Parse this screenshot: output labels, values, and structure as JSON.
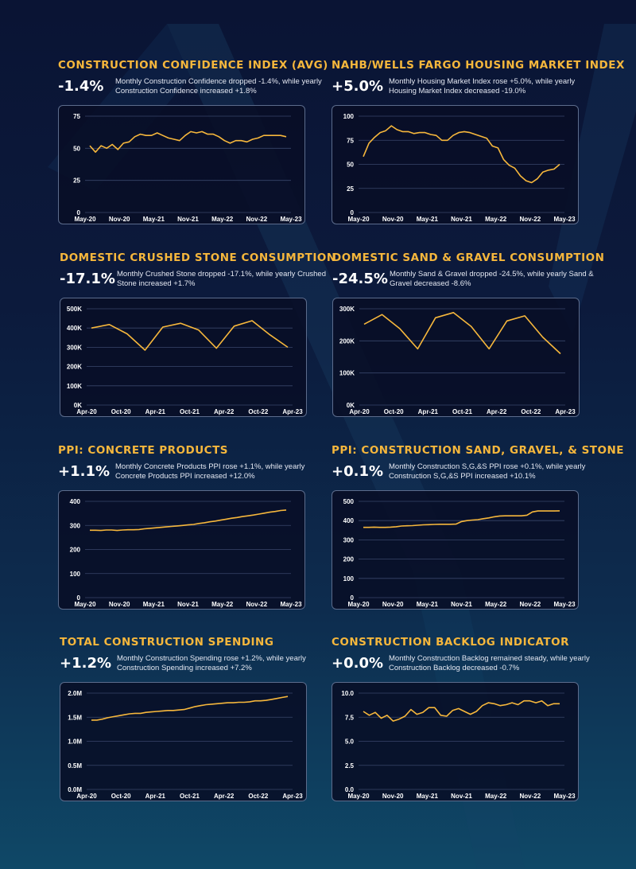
{
  "colors": {
    "accent": "#f6b73c",
    "line": "#f6b73c",
    "grid": "#39466a"
  },
  "charts": [
    {
      "id": "confidence",
      "title": "CONSTRUCTION CONFIDENCE INDEX (AVG)",
      "metric": "-1.4%",
      "description": "Monthly Construction Confidence dropped -1.4%, while yearly Construction Confidence increased +1.8%",
      "chart_data": {
        "type": "line",
        "ylim": [
          0,
          75
        ],
        "yticks": [
          "0",
          "25",
          "50",
          "75"
        ],
        "xticks": [
          "May-20",
          "Nov-20",
          "May-21",
          "Nov-21",
          "May-22",
          "Nov-22",
          "May-23"
        ],
        "values": [
          52,
          47,
          52,
          50,
          53,
          49,
          54,
          55,
          59,
          61,
          60,
          60,
          62,
          60,
          58,
          57,
          56,
          60,
          63,
          62,
          63,
          61,
          61,
          59,
          56,
          54,
          56,
          56,
          55,
          57,
          58,
          60,
          60,
          60,
          60,
          59
        ]
      }
    },
    {
      "id": "housing",
      "title": "NAHB/WELLS FARGO HOUSING MARKET INDEX",
      "metric": "+5.0%",
      "description": "Monthly Housing Market Index rose +5.0%, while yearly Housing Market Index decreased -19.0%",
      "chart_data": {
        "type": "line",
        "ylim": [
          0,
          100
        ],
        "yticks": [
          "0",
          "25",
          "50",
          "75",
          "100"
        ],
        "xticks": [
          "May-20",
          "Nov-20",
          "May-21",
          "Nov-21",
          "May-22",
          "Nov-22",
          "May-23"
        ],
        "values": [
          58,
          72,
          78,
          83,
          85,
          90,
          86,
          84,
          84,
          82,
          83,
          83,
          81,
          80,
          75,
          75,
          80,
          83,
          84,
          83,
          81,
          79,
          77,
          69,
          67,
          55,
          49,
          46,
          38,
          33,
          31,
          35,
          42,
          44,
          45,
          50
        ]
      }
    },
    {
      "id": "crushed",
      "title": "DOMESTIC CRUSHED STONE CONSUMPTION",
      "metric": "-17.1%",
      "description": "Monthly Crushed Stone dropped -17.1%, while yearly Crushed Stone increased +1.7%",
      "chart_data": {
        "type": "line",
        "ylim": [
          0,
          500
        ],
        "yticks": [
          "0K",
          "100K",
          "200K",
          "300K",
          "400K",
          "500K"
        ],
        "xticks": [
          "Apr-20",
          "Oct-20",
          "Apr-21",
          "Oct-21",
          "Apr-22",
          "Oct-22",
          "Apr-23"
        ],
        "values": [
          400,
          418,
          370,
          285,
          405,
          425,
          390,
          295,
          410,
          438,
          365,
          300
        ]
      }
    },
    {
      "id": "sand",
      "title": "DOMESTIC SAND & GRAVEL CONSUMPTION",
      "metric": "-24.5%",
      "description": "Monthly Sand & Gravel dropped -24.5%, while yearly Sand & Gravel decreased -8.6%",
      "chart_data": {
        "type": "line",
        "ylim": [
          0,
          300
        ],
        "yticks": [
          "0K",
          "100K",
          "200K",
          "300K"
        ],
        "xticks": [
          "Apr-20",
          "Oct-20",
          "Apr-21",
          "Oct-21",
          "Apr-22",
          "Oct-22",
          "Apr-23"
        ],
        "values": [
          252,
          282,
          238,
          175,
          272,
          288,
          245,
          175,
          262,
          278,
          212,
          160
        ]
      }
    },
    {
      "id": "concrete",
      "title": "PPI: CONCRETE PRODUCTS",
      "metric": "+1.1%",
      "description": "Monthly Concrete Products PPI rose +1.1%, while yearly Concrete Products PPI increased +12.0%",
      "chart_data": {
        "type": "line",
        "ylim": [
          0,
          400
        ],
        "yticks": [
          "0",
          "100",
          "200",
          "300",
          "400"
        ],
        "xticks": [
          "May-20",
          "Nov-20",
          "May-21",
          "Nov-21",
          "May-22",
          "Nov-22",
          "May-23"
        ],
        "values": [
          280,
          280,
          279,
          281,
          281,
          279,
          281,
          282,
          282,
          283,
          286,
          288,
          290,
          292,
          294,
          296,
          298,
          300,
          302,
          304,
          308,
          311,
          315,
          318,
          322,
          326,
          330,
          333,
          337,
          340,
          343,
          347,
          351,
          355,
          358,
          362,
          364
        ]
      }
    },
    {
      "id": "sgs",
      "title": "PPI: CONSTRUCTION SAND, GRAVEL, & STONE",
      "metric": "+0.1%",
      "description": "Monthly Construction S,G,&S PPI rose +0.1%, while yearly Construction S,G,&S PPI increased +10.1%",
      "chart_data": {
        "type": "line",
        "ylim": [
          0,
          500
        ],
        "yticks": [
          "0",
          "100",
          "200",
          "300",
          "400",
          "500"
        ],
        "xticks": [
          "May-20",
          "Nov-20",
          "May-21",
          "Nov-21",
          "May-22",
          "Nov-22",
          "May-23"
        ],
        "values": [
          365,
          365,
          366,
          365,
          365,
          366,
          368,
          372,
          373,
          374,
          376,
          378,
          379,
          380,
          381,
          381,
          381,
          382,
          395,
          400,
          403,
          405,
          410,
          414,
          420,
          424,
          425,
          425,
          425,
          425,
          428,
          445,
          450,
          450,
          450,
          450,
          451
        ]
      }
    },
    {
      "id": "spending",
      "title": "TOTAL CONSTRUCTION SPENDING",
      "metric": "+1.2%",
      "description": "Monthly Construction Spending rose +1.2%, while yearly Construction Spending increased +7.2%",
      "chart_data": {
        "type": "line",
        "ylim": [
          0,
          2.0
        ],
        "yticks": [
          "0.0M",
          "0.5M",
          "1.0M",
          "1.5M",
          "2.0M"
        ],
        "xticks": [
          "Apr-20",
          "Oct-20",
          "Apr-21",
          "Oct-21",
          "Apr-22",
          "Oct-22",
          "Apr-23"
        ],
        "values": [
          1.44,
          1.44,
          1.46,
          1.49,
          1.51,
          1.53,
          1.55,
          1.57,
          1.58,
          1.58,
          1.6,
          1.61,
          1.62,
          1.63,
          1.64,
          1.64,
          1.65,
          1.66,
          1.69,
          1.72,
          1.74,
          1.76,
          1.77,
          1.78,
          1.79,
          1.8,
          1.8,
          1.81,
          1.81,
          1.82,
          1.84,
          1.84,
          1.85,
          1.87,
          1.89,
          1.91,
          1.93
        ]
      }
    },
    {
      "id": "backlog",
      "title": "CONSTRUCTION BACKLOG INDICATOR",
      "metric": "+0.0%",
      "description": "Monthly Construction Backlog remained steady, while yearly Construction Backlog decreased -0.7%",
      "chart_data": {
        "type": "line",
        "ylim": [
          0,
          10
        ],
        "yticks": [
          "0.0",
          "2.5",
          "5.0",
          "7.5",
          "10.0"
        ],
        "xticks": [
          "May-20",
          "Nov-20",
          "May-21",
          "Nov-21",
          "May-22",
          "Nov-22",
          "May-23"
        ],
        "values": [
          8.1,
          7.7,
          8.0,
          7.4,
          7.7,
          7.1,
          7.3,
          7.6,
          8.3,
          7.8,
          8.0,
          8.5,
          8.5,
          7.7,
          7.6,
          8.2,
          8.4,
          8.1,
          7.8,
          8.1,
          8.7,
          9.0,
          8.9,
          8.7,
          8.8,
          9.0,
          8.8,
          9.2,
          9.2,
          9.0,
          9.2,
          8.7,
          8.9,
          8.9
        ]
      }
    }
  ]
}
